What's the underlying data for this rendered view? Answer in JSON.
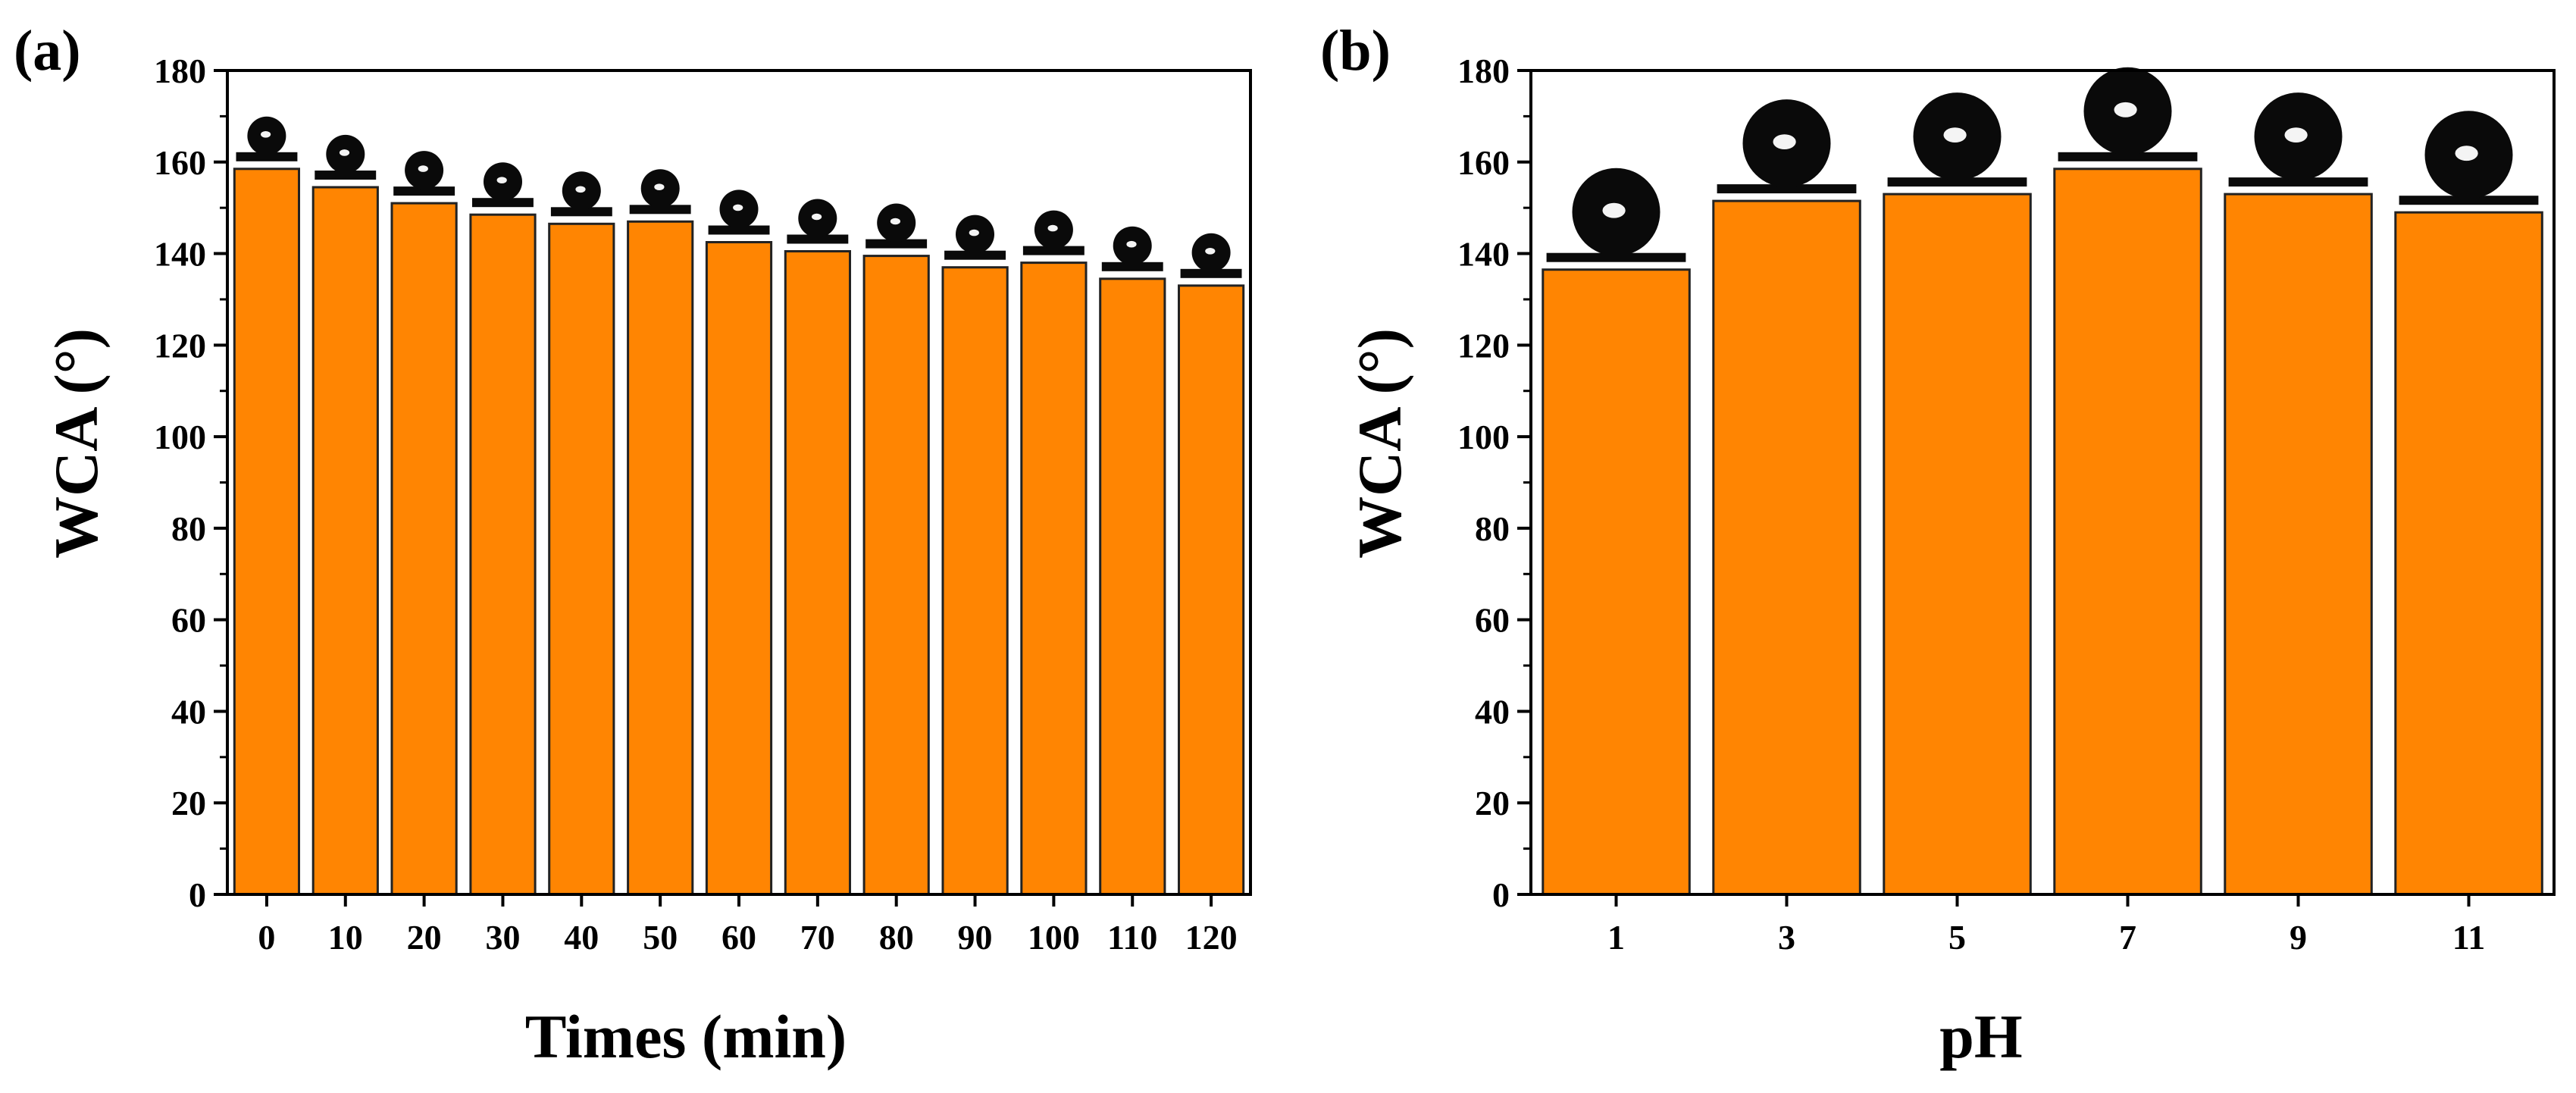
{
  "colors": {
    "bar_fill": "#ff8502",
    "bar_stroke": "#222222",
    "axis": "#000000",
    "droplet": "#0a0a0a",
    "substrate": "#0a0a0a"
  },
  "chart_data": [
    {
      "type": "bar",
      "panel_label": "(a)",
      "title": "",
      "xlabel": "Times (min)",
      "ylabel": "WCA (°)",
      "ylim": [
        0,
        180
      ],
      "yticks": [
        0,
        20,
        40,
        60,
        80,
        100,
        120,
        140,
        160,
        180
      ],
      "grid": false,
      "categories": [
        "0",
        "10",
        "20",
        "30",
        "40",
        "50",
        "60",
        "70",
        "80",
        "90",
        "100",
        "110",
        "120"
      ],
      "values": [
        158.5,
        154.5,
        151,
        148.5,
        146.5,
        147,
        142.5,
        140.5,
        139.5,
        137,
        138,
        134.5,
        133
      ],
      "droplet_images": "water droplet photo above each bar"
    },
    {
      "type": "bar",
      "panel_label": "(b)",
      "title": "",
      "xlabel": "pH",
      "ylabel": "WCA (°)",
      "ylim": [
        0,
        180
      ],
      "yticks": [
        0,
        20,
        40,
        60,
        80,
        100,
        120,
        140,
        160,
        180
      ],
      "grid": false,
      "categories": [
        "1",
        "3",
        "5",
        "7",
        "9",
        "11"
      ],
      "values": [
        136.5,
        151.5,
        153,
        158.5,
        153,
        149
      ],
      "droplet_images": "water droplet photo above each bar"
    }
  ]
}
